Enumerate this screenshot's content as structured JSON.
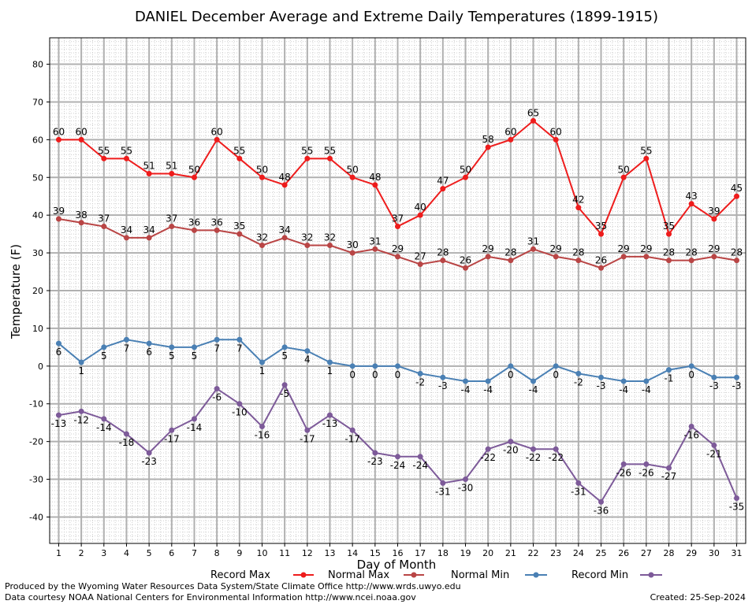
{
  "chart_data": {
    "type": "line",
    "title": "DANIEL December Average and Extreme Daily Temperatures (1899-1915)",
    "xlabel": "Day of Month",
    "ylabel": "Temperature (F)",
    "x": [
      1,
      2,
      3,
      4,
      5,
      6,
      7,
      8,
      9,
      10,
      11,
      12,
      13,
      14,
      15,
      16,
      17,
      18,
      19,
      20,
      21,
      22,
      23,
      24,
      25,
      26,
      27,
      28,
      29,
      30,
      31
    ],
    "xlim": [
      0.6,
      31.4
    ],
    "ylim": [
      -47,
      87
    ],
    "yticks": [
      -40,
      -30,
      -20,
      -10,
      0,
      10,
      20,
      30,
      40,
      50,
      60,
      70,
      80
    ],
    "grid": true,
    "legend_position": "bottom",
    "series": [
      {
        "name": "Record Max",
        "color": "#ee1c1c",
        "values": [
          60,
          60,
          55,
          55,
          51,
          51,
          50,
          60,
          55,
          50,
          48,
          55,
          55,
          50,
          48,
          37,
          40,
          47,
          50,
          58,
          60,
          65,
          60,
          42,
          35,
          50,
          55,
          35,
          43,
          39,
          45
        ]
      },
      {
        "name": "Normal Max",
        "color": "#b94545",
        "values": [
          39,
          38,
          37,
          34,
          34,
          37,
          36,
          36,
          35,
          32,
          34,
          32,
          32,
          30,
          31,
          29,
          27,
          28,
          26,
          29,
          28,
          31,
          29,
          28,
          26,
          29,
          29,
          28,
          28,
          29,
          28
        ]
      },
      {
        "name": "Normal Min",
        "color": "#4a80b4",
        "values": [
          6,
          1,
          5,
          7,
          6,
          5,
          5,
          7,
          7,
          1,
          5,
          4,
          1,
          0,
          0,
          0,
          -2,
          -3,
          -4,
          -4,
          0,
          -4,
          0,
          -2,
          -3,
          -4,
          -4,
          -1,
          0,
          -3,
          -3
        ]
      },
      {
        "name": "Record Min",
        "color": "#7d5a99",
        "values": [
          -13,
          -12,
          -14,
          -18,
          -23,
          -17,
          -14,
          -6,
          -10,
          -16,
          -5,
          -17,
          -13,
          -17,
          -23,
          -24,
          -24,
          -31,
          -30,
          -22,
          -20,
          -22,
          -22,
          -31,
          -36,
          -26,
          -26,
          -27,
          -16,
          -21,
          -35
        ]
      }
    ]
  },
  "footer": {
    "produced_by": "Produced by the Wyoming Water Resources Data System/State Climate Office http://www.wrds.uwyo.edu",
    "courtesy": "Data courtesy NOAA National Centers for Environmental Information http://www.ncei.noaa.gov",
    "created": "Created:  25-Sep-2024"
  }
}
